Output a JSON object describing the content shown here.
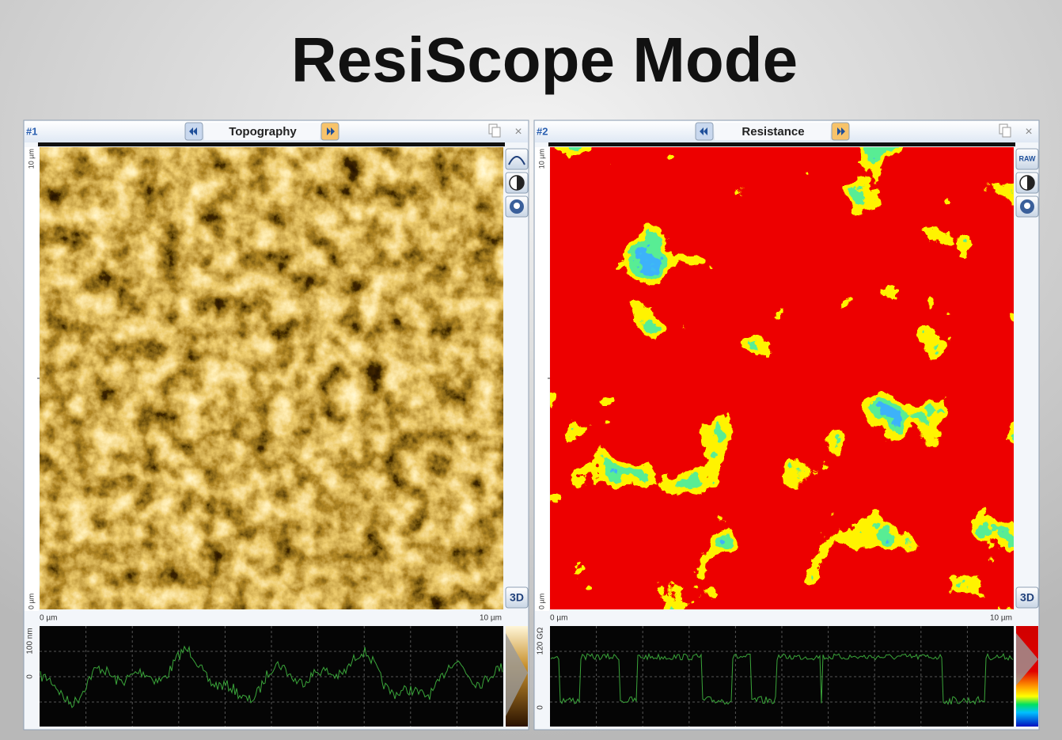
{
  "title": "ResiScope Mode",
  "panels": [
    {
      "id": "#1",
      "name": "Topography",
      "close": "×",
      "y_axis": [
        "10 µm",
        "0 µm"
      ],
      "x_axis": [
        "0 µm",
        "10 µm"
      ],
      "button_3d": "3D",
      "profile_labels": [
        "100 nm",
        "0"
      ]
    },
    {
      "id": "#2",
      "name": "Resistance",
      "close": "×",
      "y_axis": [
        "10 µm",
        "0 µm"
      ],
      "x_axis": [
        "0 µm",
        "10 µm"
      ],
      "button_3d": "3D",
      "profile_labels": [
        "120 GΩ",
        "0"
      ],
      "tool_label": "RAW"
    }
  ]
}
